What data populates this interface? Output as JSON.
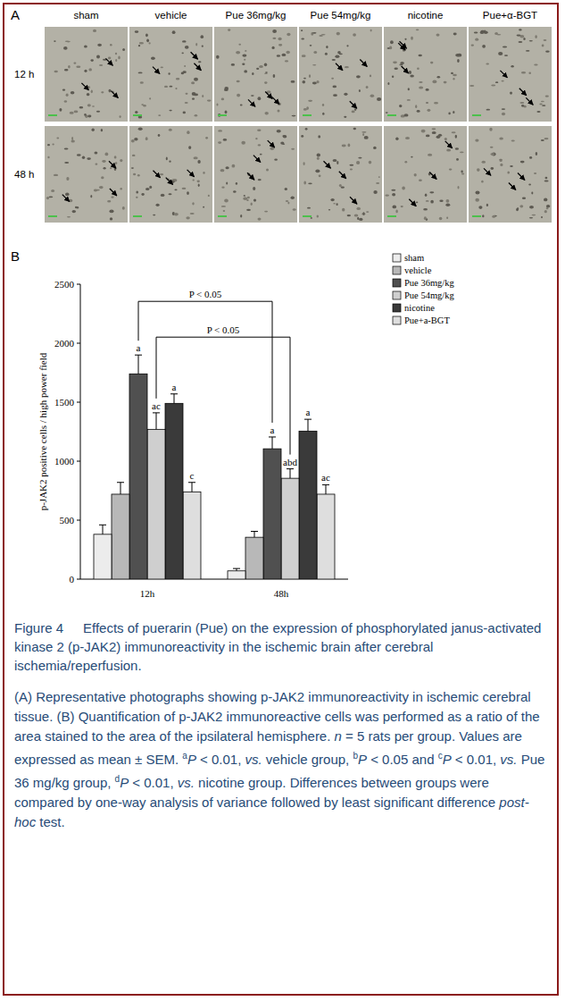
{
  "panel_a": {
    "label": "A",
    "columns": [
      "sham",
      "vehicle",
      "Pue 36mg/kg",
      "Pue 54mg/kg",
      "nicotine",
      "Pue+α-BGT"
    ],
    "rows": [
      "12 h",
      "48 h"
    ]
  },
  "chart_data": {
    "type": "bar",
    "panel_label": "B",
    "y_label": "p-JAK2 positive cells / high power field",
    "categories": [
      "12h",
      "48h"
    ],
    "ylim": [
      0,
      2500
    ],
    "yticks": [
      0,
      500,
      1000,
      1500,
      2000,
      2500
    ],
    "legend": "top-right",
    "series": [
      {
        "name": "sham",
        "color": "#ececec",
        "values": [
          380,
          70
        ],
        "errors": [
          80,
          20
        ],
        "annotations": [
          null,
          null
        ]
      },
      {
        "name": "vehicle",
        "color": "#b8b8b8",
        "values": [
          720,
          355
        ],
        "errors": [
          100,
          50
        ],
        "annotations": [
          null,
          null
        ]
      },
      {
        "name": "Pue 36mg/kg",
        "color": "#505050",
        "values": [
          1740,
          1105
        ],
        "errors": [
          160,
          100
        ],
        "annotations": [
          "a",
          "a"
        ],
        "comparison": "P < 0.05"
      },
      {
        "name": "Pue 54mg/kg",
        "color": "#cfcfcf",
        "values": [
          1270,
          855
        ],
        "errors": [
          140,
          80
        ],
        "annotations": [
          "ac",
          "abd"
        ],
        "comparison": "P < 0.05"
      },
      {
        "name": "nicotine",
        "color": "#3a3a3a",
        "values": [
          1490,
          1255
        ],
        "errors": [
          80,
          100
        ],
        "annotations": [
          "a",
          "a"
        ]
      },
      {
        "name": "Pue+a-BGT",
        "color": "#dedede",
        "values": [
          740,
          720
        ],
        "errors": [
          80,
          80
        ],
        "annotations": [
          "c",
          "ac"
        ]
      }
    ]
  },
  "caption": {
    "title": [
      {
        "text": "Figure 4"
      },
      {
        "text": "Effects of puerarin (Pue) on the expression of phosphorylated janus-activated kinase 2 (p-JAK2) immunoreactivity in the ischemic brain after cerebral ischemia/reperfusion."
      }
    ],
    "body": [
      {
        "text": "(A) Representative photographs showing p-JAK2 immunoreactivity in ischemic cerebral tissue. (B) Quantification of p-JAK2 immunoreactive cells was performed as a ratio of the area stained to the area of the ipsilateral hemisphere. "
      },
      {
        "text": "n",
        "italic": true
      },
      {
        "text": " = 5 rats per group. Values are expressed as mean ± SEM. "
      },
      {
        "text": "a",
        "sup": true
      },
      {
        "text": "P",
        "italic": true
      },
      {
        "text": " < 0.01, "
      },
      {
        "text": "vs.",
        "italic": true
      },
      {
        "text": " vehicle group, "
      },
      {
        "text": "b",
        "sup": true
      },
      {
        "text": "P",
        "italic": true
      },
      {
        "text": " < 0.05 and "
      },
      {
        "text": "c",
        "sup": true
      },
      {
        "text": "P",
        "italic": true
      },
      {
        "text": " < 0.01, "
      },
      {
        "text": "vs.",
        "italic": true
      },
      {
        "text": " Pue 36 mg/kg group, "
      },
      {
        "text": "d",
        "sup": true
      },
      {
        "text": "P",
        "italic": true
      },
      {
        "text": " < 0.01, "
      },
      {
        "text": "vs.",
        "italic": true
      },
      {
        "text": " nicotine group. Differences between groups were compared by one-way analysis of variance followed by least significant difference "
      },
      {
        "text": "post-hoc",
        "italic": true
      },
      {
        "text": " test."
      }
    ]
  }
}
